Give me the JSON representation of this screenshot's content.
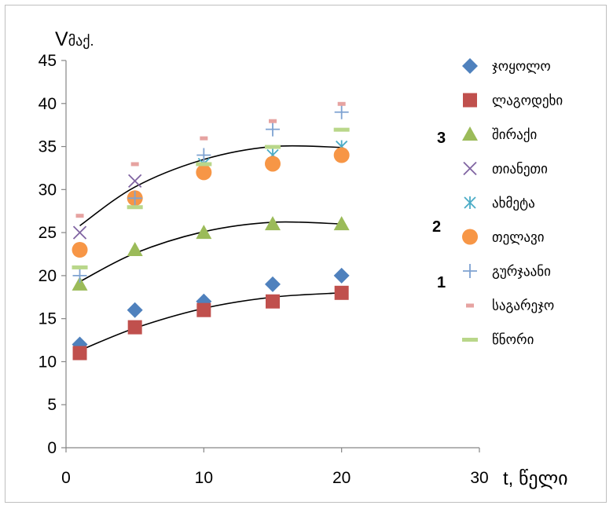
{
  "chart_data": {
    "type": "scatter",
    "title": "",
    "ylabel": "V",
    "ylabel_sub": "მაქ.",
    "xlabel": "t,  წელი",
    "xlim": [
      0,
      30
    ],
    "ylim": [
      0,
      45
    ],
    "xticks": [
      "0",
      "10",
      "20",
      "30"
    ],
    "yticks": [
      "0",
      "5",
      "10",
      "15",
      "20",
      "25",
      "30",
      "35",
      "40",
      "45"
    ],
    "grid": false,
    "legend_position": "right",
    "series": [
      {
        "name": "ჯოყოლო",
        "marker": "diamond",
        "color": "#4F81BD",
        "x": [
          1,
          5,
          10,
          15,
          20
        ],
        "y": [
          12,
          16,
          17,
          19,
          20
        ]
      },
      {
        "name": "ლაგოდეხი",
        "marker": "square",
        "color": "#C0504D",
        "x": [
          1,
          5,
          10,
          15,
          20
        ],
        "y": [
          11,
          14,
          16,
          17,
          18
        ]
      },
      {
        "name": "შირაქი",
        "marker": "triangle",
        "color": "#9BBB59",
        "x": [
          1,
          5,
          10,
          15,
          20
        ],
        "y": [
          19,
          23,
          25,
          26,
          26
        ]
      },
      {
        "name": "თიანეთი",
        "marker": "x",
        "color": "#8064A2",
        "x": [
          1,
          5
        ],
        "y": [
          25,
          31
        ]
      },
      {
        "name": "ახმეტა",
        "marker": "asterisk",
        "color": "#4BACC6",
        "x": [
          1,
          5,
          10,
          15,
          20
        ],
        "y": [
          23,
          29,
          33,
          34,
          35
        ]
      },
      {
        "name": "თელავი",
        "marker": "circle",
        "color": "#F79646",
        "x": [
          1,
          5,
          10,
          15,
          20
        ],
        "y": [
          23,
          29,
          32,
          33,
          34
        ]
      },
      {
        "name": "გურჯაანი",
        "marker": "plus",
        "color": "#7EA2D1",
        "x": [
          1,
          5,
          10,
          15,
          20
        ],
        "y": [
          20,
          29,
          34,
          37,
          39
        ]
      },
      {
        "name": "საგარეჯო",
        "marker": "dash",
        "color": "#E6A3A1",
        "x": [
          1,
          5,
          10,
          15,
          20
        ],
        "y": [
          27,
          33,
          36,
          38,
          40
        ]
      },
      {
        "name": "წნორი",
        "marker": "bar",
        "color": "#B9D78A",
        "x": [
          1,
          5,
          10,
          15,
          20
        ],
        "y": [
          21,
          28,
          33,
          35,
          37
        ]
      }
    ],
    "trendlines": [
      {
        "label": "1",
        "x": [
          1,
          5,
          10,
          15,
          20
        ],
        "y": [
          11.3,
          13.9,
          16.2,
          17.5,
          18.0
        ]
      },
      {
        "label": "2",
        "x": [
          1,
          5,
          10,
          15,
          20
        ],
        "y": [
          19.3,
          22.6,
          25.1,
          26.2,
          26.0
        ]
      },
      {
        "label": "3",
        "x": [
          1,
          5,
          10,
          15,
          20
        ],
        "y": [
          25.8,
          30.3,
          33.5,
          35.0,
          34.9
        ]
      }
    ]
  }
}
